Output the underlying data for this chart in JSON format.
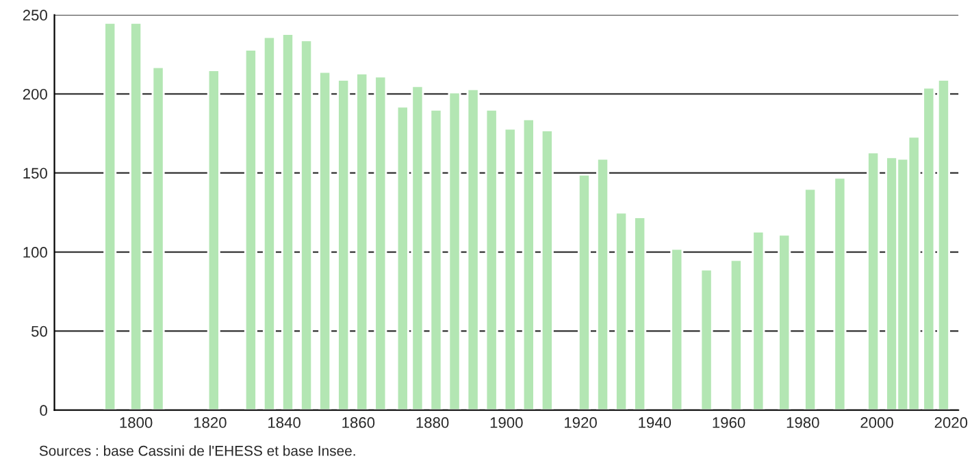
{
  "chart_data": {
    "type": "bar",
    "x": [
      1793,
      1800,
      1806,
      1821,
      1831,
      1836,
      1841,
      1846,
      1851,
      1856,
      1861,
      1866,
      1872,
      1876,
      1881,
      1886,
      1891,
      1896,
      1901,
      1906,
      1911,
      1921,
      1926,
      1931,
      1936,
      1946,
      1954,
      1962,
      1968,
      1975,
      1982,
      1990,
      1999,
      2004,
      2007,
      2010,
      2014,
      2018
    ],
    "series": [
      {
        "color": "#b3e6b3",
        "values": [
          245,
          245,
          217,
          215,
          228,
          236,
          238,
          234,
          214,
          209,
          213,
          211,
          192,
          205,
          190,
          201,
          203,
          190,
          178,
          184,
          177,
          149,
          159,
          125,
          122,
          102,
          89,
          95,
          113,
          111,
          140,
          147,
          163,
          160,
          159,
          173,
          204,
          209
        ]
      }
    ],
    "xlim": [
      1778,
      2022
    ],
    "xticks": [
      1800,
      1820,
      1840,
      1860,
      1880,
      1900,
      1920,
      1940,
      1960,
      1980,
      2000,
      2020
    ],
    "ylim": [
      0,
      250
    ],
    "yticks": [
      0,
      50,
      100,
      150,
      200,
      250
    ],
    "grid": "y",
    "annotations": [
      "Sources : base Cassini de l'EHESS et base Insee."
    ]
  }
}
